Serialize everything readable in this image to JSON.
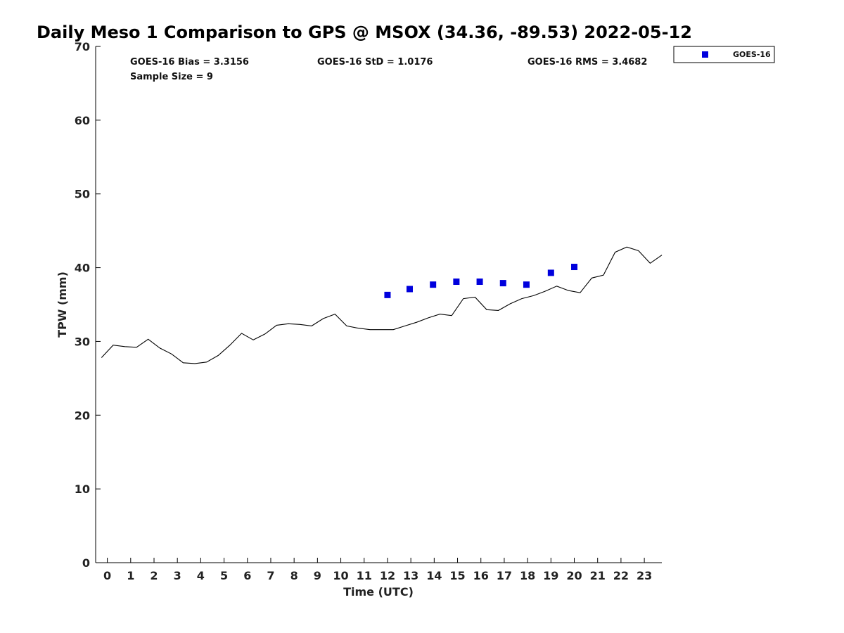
{
  "chart_data": {
    "type": "line",
    "title": "Daily Meso 1 Comparison to GPS @ MSOX (34.36, -89.53) 2022-05-12",
    "xlabel": "Time (UTC)",
    "ylabel": "TPW (mm)",
    "xlim": [
      -0.5,
      23.75
    ],
    "ylim": [
      0,
      70
    ],
    "x_ticks": [
      0,
      1,
      2,
      3,
      4,
      5,
      6,
      7,
      8,
      9,
      10,
      11,
      12,
      13,
      14,
      15,
      16,
      17,
      18,
      19,
      20,
      21,
      22,
      23
    ],
    "x_tick_labels": [
      "0",
      "1",
      "2",
      "3",
      "4",
      "5",
      "6",
      "7",
      "8",
      "9",
      "10",
      "11",
      "12",
      "13",
      "14",
      "15",
      "16",
      "17",
      "18",
      "19",
      "20",
      "21",
      "22",
      "23"
    ],
    "y_ticks": [
      0,
      10,
      20,
      30,
      40,
      50,
      60,
      70
    ],
    "y_tick_labels": [
      "0",
      "10",
      "20",
      "30",
      "40",
      "50",
      "60",
      "70"
    ],
    "grid": false,
    "legend_position": "top-right (outside plot)",
    "stats": {
      "bias": "GOES-16 Bias = 3.3156",
      "std": "GOES-16 StD = 1.0176",
      "rms": "GOES-16 RMS = 3.4682",
      "sample": "Sample Size = 9"
    },
    "series": [
      {
        "style": "line",
        "color": "#000000",
        "points": [
          [
            -0.25,
            27.8
          ],
          [
            0.25,
            29.5
          ],
          [
            0.75,
            29.3
          ],
          [
            1.25,
            29.2
          ],
          [
            1.75,
            30.3
          ],
          [
            2.25,
            29.1
          ],
          [
            2.75,
            28.3
          ],
          [
            3.25,
            27.1
          ],
          [
            3.75,
            27.0
          ],
          [
            4.25,
            27.2
          ],
          [
            4.75,
            28.1
          ],
          [
            5.25,
            29.5
          ],
          [
            5.75,
            31.1
          ],
          [
            6.25,
            30.2
          ],
          [
            6.75,
            31.0
          ],
          [
            7.25,
            32.2
          ],
          [
            7.75,
            32.4
          ],
          [
            8.25,
            32.3
          ],
          [
            8.75,
            32.1
          ],
          [
            9.25,
            33.1
          ],
          [
            9.75,
            33.7
          ],
          [
            10.25,
            32.1
          ],
          [
            10.75,
            31.8
          ],
          [
            11.25,
            31.6
          ],
          [
            11.75,
            31.6
          ],
          [
            12.25,
            31.6
          ],
          [
            12.75,
            32.1
          ],
          [
            13.25,
            32.6
          ],
          [
            13.75,
            33.2
          ],
          [
            14.25,
            33.7
          ],
          [
            14.75,
            33.5
          ],
          [
            15.25,
            35.8
          ],
          [
            15.75,
            36.0
          ],
          [
            16.25,
            34.3
          ],
          [
            16.75,
            34.2
          ],
          [
            17.25,
            35.1
          ],
          [
            17.75,
            35.8
          ],
          [
            18.25,
            36.2
          ],
          [
            18.75,
            36.8
          ],
          [
            19.25,
            37.5
          ],
          [
            19.75,
            36.9
          ],
          [
            20.25,
            36.6
          ],
          [
            20.75,
            38.6
          ],
          [
            21.25,
            39.0
          ],
          [
            21.75,
            42.1
          ],
          [
            22.25,
            42.8
          ],
          [
            22.75,
            42.3
          ],
          [
            23.25,
            40.6
          ],
          [
            23.75,
            41.7
          ]
        ]
      },
      {
        "name": "GOES-16",
        "style": "square-marker",
        "color": "#0000dd",
        "points": [
          [
            12.0,
            36.3
          ],
          [
            12.95,
            37.1
          ],
          [
            13.95,
            37.7
          ],
          [
            14.95,
            38.1
          ],
          [
            15.95,
            38.1
          ],
          [
            16.95,
            37.9
          ],
          [
            17.95,
            37.7
          ],
          [
            19.0,
            39.3
          ],
          [
            20.0,
            40.1
          ]
        ]
      }
    ]
  }
}
